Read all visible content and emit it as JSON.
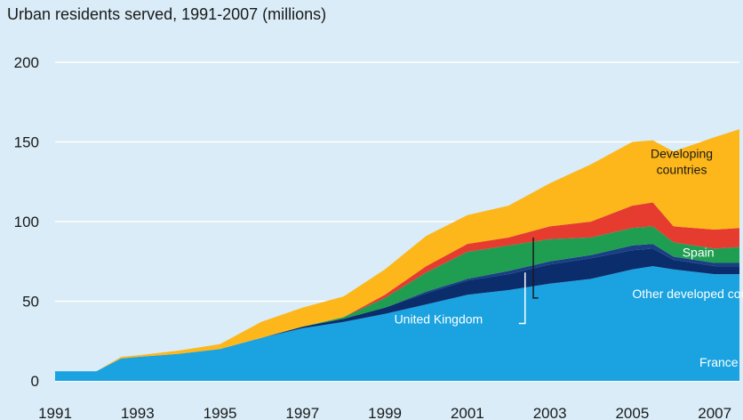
{
  "chart_data": {
    "type": "area",
    "title": "Urban residents served, 1991-2007 (millions)",
    "xlabel": "",
    "ylabel": "",
    "ylim": [
      0,
      200
    ],
    "yticks": [
      0,
      50,
      100,
      150,
      200
    ],
    "xlim": [
      1991,
      2007.6
    ],
    "xticks": [
      "1991",
      "1993",
      "1995",
      "1997",
      "1999",
      "2001",
      "2003",
      "2005",
      "2007"
    ],
    "x": [
      1991,
      1991.5,
      1992,
      1992.6,
      1993,
      1994,
      1995,
      1996,
      1997,
      1998,
      1999,
      2000,
      2001,
      2002,
      2003,
      2004,
      2005,
      2005.5,
      2006,
      2007,
      2007.6
    ],
    "stacked": true,
    "series": [
      {
        "name": "France",
        "color": "#1aa3e0",
        "values": [
          6,
          6,
          6,
          14,
          15,
          17,
          20,
          27,
          33,
          37,
          42,
          48,
          54,
          57,
          61,
          64,
          70,
          72,
          70,
          67,
          67
        ]
      },
      {
        "name": "United Kingdom",
        "color": "#0b2d6b",
        "values": [
          0,
          0,
          0,
          0,
          0,
          0,
          0,
          0,
          1,
          2,
          4,
          7,
          9,
          10,
          12,
          13,
          12,
          11,
          6,
          5,
          5
        ]
      },
      {
        "name": "Other developed countries",
        "color": "#1a3f84",
        "values": [
          0,
          0,
          0,
          0,
          0,
          0,
          0,
          0,
          0,
          0,
          0,
          1,
          1,
          2,
          2,
          2,
          3,
          3,
          2,
          2,
          2
        ]
      },
      {
        "name": "Spain",
        "color": "#1f9e52",
        "values": [
          0,
          0,
          0,
          0,
          0,
          0,
          0,
          0,
          0,
          1,
          6,
          12,
          17,
          16,
          14,
          11,
          11,
          11,
          9,
          9,
          10
        ]
      },
      {
        "name": "",
        "color": "#e63c2f",
        "values": [
          0,
          0,
          0,
          0,
          0,
          0,
          0,
          0,
          0,
          0,
          2,
          4,
          5,
          5,
          8,
          10,
          14,
          15,
          10,
          12,
          12
        ]
      },
      {
        "name": "Developing countries",
        "color": "#fdb71a",
        "values": [
          0,
          0,
          0,
          1,
          1,
          2,
          3,
          10,
          12,
          13,
          16,
          19,
          18,
          20,
          27,
          36,
          40,
          39,
          47,
          58,
          62
        ]
      }
    ],
    "annotations": [
      {
        "text": "Developing",
        "color": "#1a1a1a",
        "x": 2006.2,
        "y": 140
      },
      {
        "text": "countries",
        "color": "#1a1a1a",
        "x": 2006.2,
        "y": 130
      },
      {
        "text": "Spain",
        "color": "#ffffff",
        "x": 2006.6,
        "y": 78
      },
      {
        "text": "Other developed countries",
        "color": "#ffffff",
        "x": 2005,
        "y": 52
      },
      {
        "text": "United Kingdom",
        "color": "#ffffff",
        "x": 2000.3,
        "y": 36
      },
      {
        "text": "France",
        "color": "#ffffff",
        "x": 2007.1,
        "y": 9
      }
    ],
    "grid": true,
    "legend": "none"
  }
}
